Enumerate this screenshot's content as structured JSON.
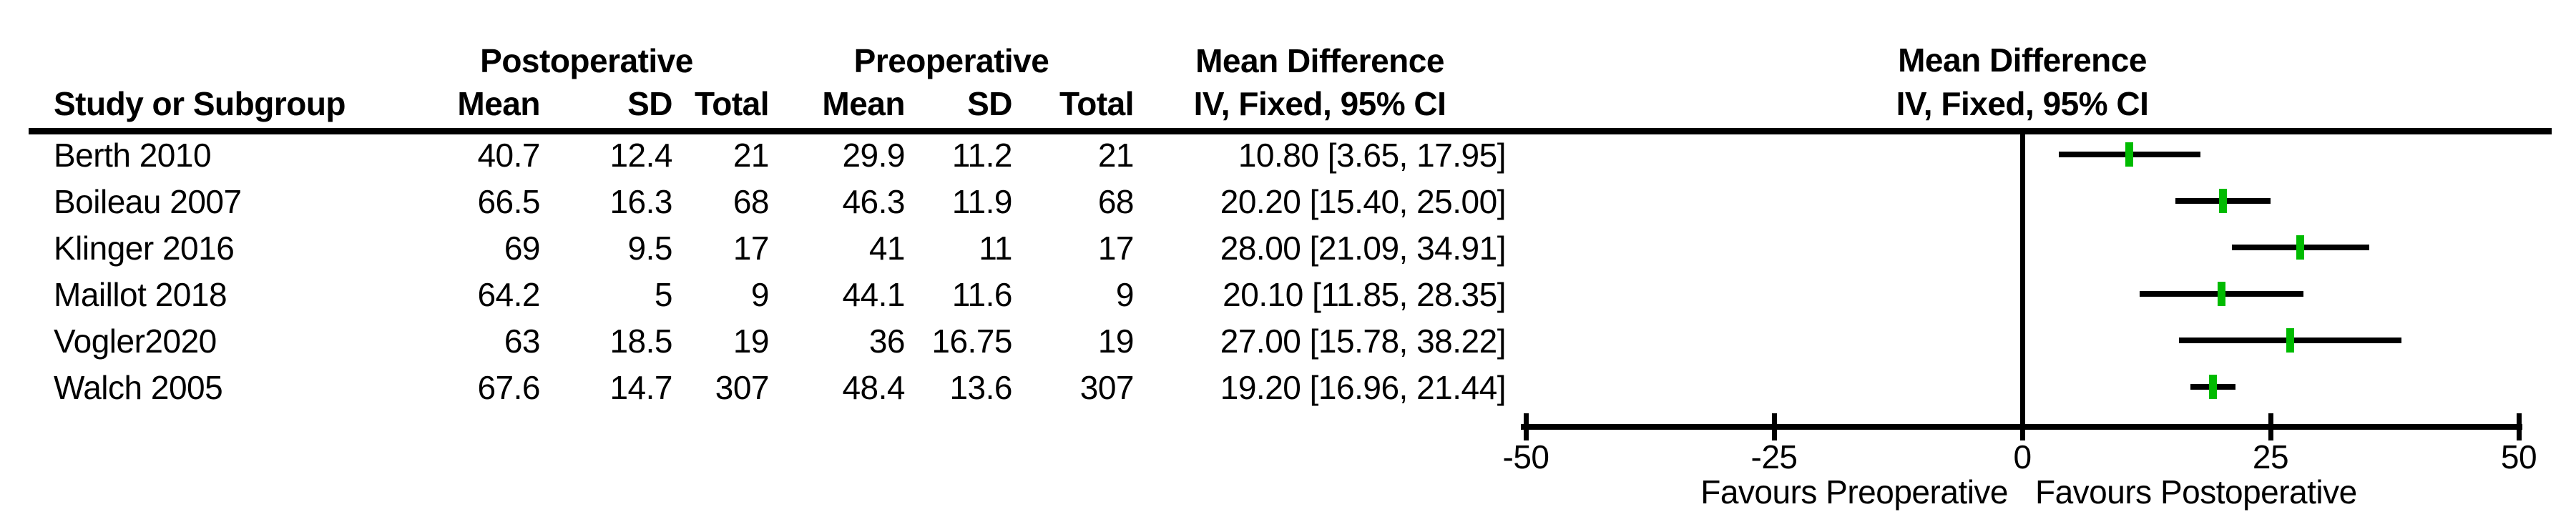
{
  "table": {
    "group_headers": {
      "postoperative": "Postoperative",
      "preoperative": "Preoperative",
      "mean_difference": "Mean Difference"
    },
    "col_headers": {
      "study": "Study or Subgroup",
      "post_mean": "Mean",
      "post_sd": "SD",
      "post_total": "Total",
      "pre_mean": "Mean",
      "pre_sd": "SD",
      "pre_total": "Total",
      "ci": "IV, Fixed, 95% CI"
    },
    "rows": [
      {
        "study": "Berth 2010",
        "post_mean": "40.7",
        "post_sd": "12.4",
        "post_total": "21",
        "pre_mean": "29.9",
        "pre_sd": "11.2",
        "pre_total": "21",
        "ci": "10.80 [3.65, 17.95]"
      },
      {
        "study": "Boileau 2007",
        "post_mean": "66.5",
        "post_sd": "16.3",
        "post_total": "68",
        "pre_mean": "46.3",
        "pre_sd": "11.9",
        "pre_total": "68",
        "ci": "20.20 [15.40, 25.00]"
      },
      {
        "study": "Klinger 2016",
        "post_mean": "69",
        "post_sd": "9.5",
        "post_total": "17",
        "pre_mean": "41",
        "pre_sd": "11",
        "pre_total": "17",
        "ci": "28.00 [21.09, 34.91]"
      },
      {
        "study": "Maillot 2018",
        "post_mean": "64.2",
        "post_sd": "5",
        "post_total": "9",
        "pre_mean": "44.1",
        "pre_sd": "11.6",
        "pre_total": "9",
        "ci": "20.10 [11.85, 28.35]"
      },
      {
        "study": "Vogler2020",
        "post_mean": "63",
        "post_sd": "18.5",
        "post_total": "19",
        "pre_mean": "36",
        "pre_sd": "16.75",
        "pre_total": "19",
        "ci": "27.00 [15.78, 38.22]"
      },
      {
        "study": "Walch 2005",
        "post_mean": "67.6",
        "post_sd": "14.7",
        "post_total": "307",
        "pre_mean": "48.4",
        "pre_sd": "13.6",
        "pre_total": "307",
        "ci": "19.20 [16.96, 21.44]"
      }
    ]
  },
  "plot": {
    "header_line1": "Mean Difference",
    "header_line2": "IV, Fixed, 95% CI",
    "favours_left": "Favours Preoperative",
    "favours_right": "Favours Postoperative"
  },
  "chart_data": {
    "type": "forest",
    "effect_measure": "Mean Difference",
    "model": "IV, Fixed, 95% CI",
    "xlim": [
      -50,
      50
    ],
    "ticks": [
      -50,
      -25,
      0,
      25,
      50
    ],
    "x_axis_labels": [
      "-50",
      "-25",
      "0",
      "25",
      "50"
    ],
    "studies": [
      {
        "name": "Berth 2010",
        "estimate": 10.8,
        "ci_low": 3.65,
        "ci_high": 17.95
      },
      {
        "name": "Boileau 2007",
        "estimate": 20.2,
        "ci_low": 15.4,
        "ci_high": 25.0
      },
      {
        "name": "Klinger 2016",
        "estimate": 28.0,
        "ci_low": 21.09,
        "ci_high": 34.91
      },
      {
        "name": "Maillot 2018",
        "estimate": 20.1,
        "ci_low": 11.85,
        "ci_high": 28.35
      },
      {
        "name": "Vogler2020",
        "estimate": 27.0,
        "ci_low": 15.78,
        "ci_high": 38.22
      },
      {
        "name": "Walch 2005",
        "estimate": 19.2,
        "ci_low": 16.96,
        "ci_high": 21.44
      }
    ],
    "marker_color": "#00bb00",
    "line_color": "#000000",
    "annotations": {
      "favours_left": "Favours Preoperative",
      "favours_right": "Favours Postoperative"
    }
  }
}
